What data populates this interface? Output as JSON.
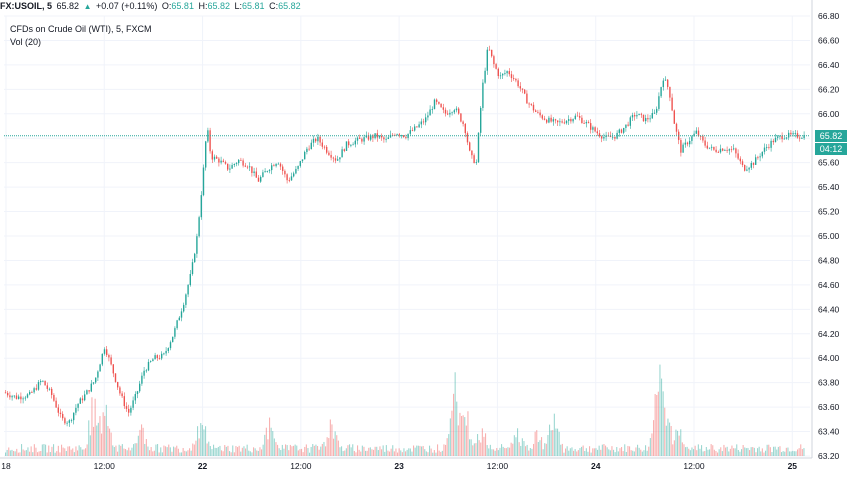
{
  "header": {
    "symbol": "FX:USOIL, 5",
    "last": "65.82",
    "change_arrow": "▲",
    "change": "+0.07 (+0.11%)",
    "o_label": "O:",
    "o_value": "65.81",
    "h_label": "H:",
    "h_value": "65.82",
    "l_label": "L:",
    "l_value": "65.81",
    "c_label": "C:",
    "c_value": "65.82"
  },
  "subtitle": "CFDs on Crude Oil (WTI), 5, FXCM",
  "volume_label": "Vol (20)",
  "price_label": "65.82",
  "countdown_label": "04:12",
  "colors": {
    "up": "#26a69a",
    "down": "#ef5350",
    "grid": "#f0f3fa",
    "axis_text": "#131722",
    "price_line": "#26a69a"
  },
  "chart_data": {
    "type": "candlestick",
    "y_axis": {
      "min": 63.2,
      "max": 66.8,
      "ticks": [
        "66.80",
        "66.60",
        "66.40",
        "66.20",
        "66.00",
        "65.80",
        "65.60",
        "65.40",
        "65.20",
        "65.00",
        "64.80",
        "64.60",
        "64.40",
        "64.20",
        "64.00",
        "63.80",
        "63.60",
        "63.40",
        "63.20"
      ]
    },
    "x_axis": {
      "ticks": [
        {
          "label": "18",
          "x": 0.5
        },
        {
          "label": "12:00",
          "x": 1.0
        },
        {
          "label": "22",
          "x": 1.5
        },
        {
          "label": "12:00",
          "x": 2.0
        },
        {
          "label": "23",
          "x": 2.5
        },
        {
          "label": "12:00",
          "x": 3.0
        },
        {
          "label": "24",
          "x": 3.5
        },
        {
          "label": "12:00",
          "x": 4.0
        },
        {
          "label": "25",
          "x": 4.5
        }
      ],
      "range": [
        0.49,
        4.59
      ]
    },
    "current_price": 65.82,
    "price_path": [
      [
        0.49,
        63.72
      ],
      [
        0.55,
        63.68
      ],
      [
        0.62,
        63.7
      ],
      [
        0.68,
        63.82
      ],
      [
        0.73,
        63.7
      ],
      [
        0.78,
        63.5
      ],
      [
        0.82,
        63.48
      ],
      [
        0.86,
        63.62
      ],
      [
        0.9,
        63.7
      ],
      [
        0.95,
        63.82
      ],
      [
        1.0,
        64.1
      ],
      [
        1.04,
        63.9
      ],
      [
        1.08,
        63.7
      ],
      [
        1.12,
        63.55
      ],
      [
        1.16,
        63.7
      ],
      [
        1.2,
        63.9
      ],
      [
        1.25,
        64.0
      ],
      [
        1.3,
        64.02
      ],
      [
        1.35,
        64.2
      ],
      [
        1.4,
        64.45
      ],
      [
        1.44,
        64.7
      ],
      [
        1.47,
        65.0
      ],
      [
        1.5,
        65.5
      ],
      [
        1.52,
        65.9
      ],
      [
        1.54,
        65.65
      ],
      [
        1.58,
        65.62
      ],
      [
        1.63,
        65.55
      ],
      [
        1.68,
        65.62
      ],
      [
        1.73,
        65.58
      ],
      [
        1.78,
        65.45
      ],
      [
        1.83,
        65.55
      ],
      [
        1.88,
        65.62
      ],
      [
        1.93,
        65.45
      ],
      [
        1.98,
        65.55
      ],
      [
        2.03,
        65.72
      ],
      [
        2.08,
        65.8
      ],
      [
        2.13,
        65.7
      ],
      [
        2.18,
        65.62
      ],
      [
        2.23,
        65.75
      ],
      [
        2.28,
        65.78
      ],
      [
        2.33,
        65.8
      ],
      [
        2.38,
        65.82
      ],
      [
        2.43,
        65.78
      ],
      [
        2.48,
        65.85
      ],
      [
        2.53,
        65.82
      ],
      [
        2.58,
        65.88
      ],
      [
        2.63,
        65.95
      ],
      [
        2.68,
        66.1
      ],
      [
        2.73,
        66.0
      ],
      [
        2.78,
        66.05
      ],
      [
        2.83,
        65.9
      ],
      [
        2.86,
        65.65
      ],
      [
        2.89,
        65.6
      ],
      [
        2.92,
        66.2
      ],
      [
        2.95,
        66.55
      ],
      [
        2.98,
        66.4
      ],
      [
        3.01,
        66.3
      ],
      [
        3.05,
        66.35
      ],
      [
        3.1,
        66.25
      ],
      [
        3.15,
        66.1
      ],
      [
        3.2,
        66.0
      ],
      [
        3.25,
        65.95
      ],
      [
        3.3,
        65.92
      ],
      [
        3.35,
        65.95
      ],
      [
        3.4,
        65.98
      ],
      [
        3.45,
        65.92
      ],
      [
        3.5,
        65.85
      ],
      [
        3.55,
        65.8
      ],
      [
        3.6,
        65.82
      ],
      [
        3.65,
        65.9
      ],
      [
        3.7,
        66.0
      ],
      [
        3.75,
        65.95
      ],
      [
        3.8,
        66.0
      ],
      [
        3.84,
        66.3
      ],
      [
        3.87,
        66.2
      ],
      [
        3.9,
        65.9
      ],
      [
        3.93,
        65.7
      ],
      [
        3.97,
        65.78
      ],
      [
        4.01,
        65.85
      ],
      [
        4.05,
        65.75
      ],
      [
        4.1,
        65.7
      ],
      [
        4.15,
        65.72
      ],
      [
        4.2,
        65.7
      ],
      [
        4.25,
        65.55
      ],
      [
        4.3,
        65.6
      ],
      [
        4.35,
        65.7
      ],
      [
        4.4,
        65.78
      ],
      [
        4.45,
        65.82
      ]
    ],
    "volume_hotspots": [
      {
        "x": 2.78,
        "v": 0.95
      },
      {
        "x": 0.95,
        "v": 0.75
      },
      {
        "x": 1.0,
        "v": 0.6
      },
      {
        "x": 2.83,
        "v": 0.65
      },
      {
        "x": 3.28,
        "v": 0.55
      },
      {
        "x": 3.82,
        "v": 0.9
      },
      {
        "x": 3.84,
        "v": 0.7
      },
      {
        "x": 3.86,
        "v": 0.5
      },
      {
        "x": 1.49,
        "v": 0.45
      },
      {
        "x": 1.18,
        "v": 0.35
      },
      {
        "x": 1.84,
        "v": 0.4
      },
      {
        "x": 2.15,
        "v": 0.4
      },
      {
        "x": 2.92,
        "v": 0.35
      },
      {
        "x": 3.1,
        "v": 0.3
      },
      {
        "x": 3.2,
        "v": 0.28
      },
      {
        "x": 3.92,
        "v": 0.4
      }
    ]
  }
}
